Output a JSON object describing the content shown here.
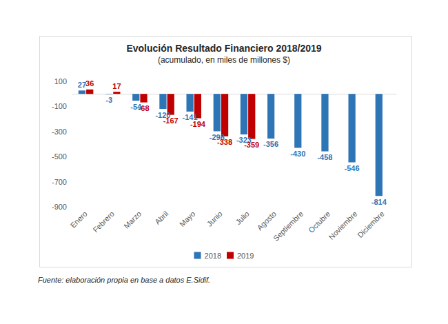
{
  "chart_data": {
    "type": "bar",
    "title": "Evolución Resultado Financiero 2018/2019",
    "subtitle": "(acumulado, en miles de millones $)",
    "annotations": [
      "Fuente: elaboración propia en base a datos E.Sidif."
    ],
    "categories": [
      "Enero",
      "Febrero",
      "Marzo",
      "Abril",
      "Mayo",
      "Junio",
      "Julio",
      "Agosto",
      "Septiembre",
      "Octubre",
      "Noviembre",
      "Diciembre"
    ],
    "series": [
      {
        "name": "2018",
        "color": "#2e75b6",
        "values": [
          27,
          -3,
          -54,
          -120,
          -141,
          -298,
          -323,
          -356,
          -430,
          -458,
          -546,
          -814
        ]
      },
      {
        "name": "2019",
        "color": "#c00000",
        "values": [
          36,
          17,
          -68,
          -167,
          -194,
          -338,
          -359,
          null,
          null,
          null,
          null,
          null
        ]
      }
    ],
    "ylim": [
      -900,
      100
    ],
    "yticks": [
      -900,
      -700,
      -500,
      -300,
      -100,
      100
    ],
    "grid": false,
    "legend": "bottom",
    "data_labels": true
  }
}
